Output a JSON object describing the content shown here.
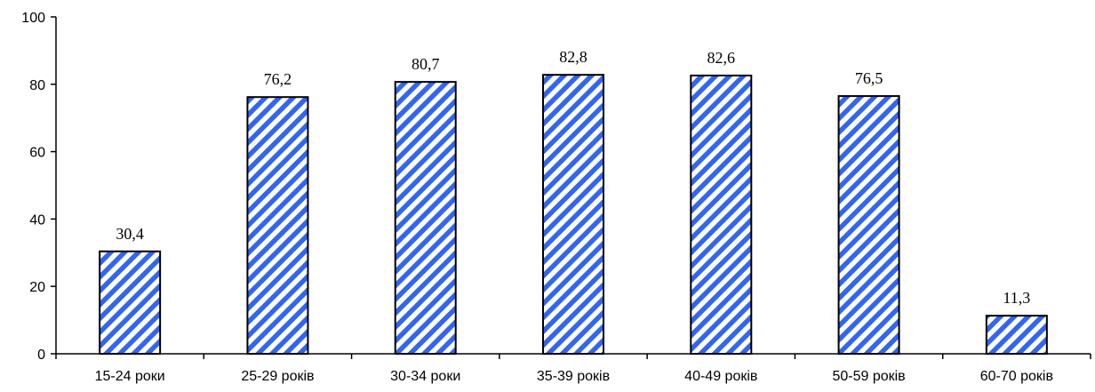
{
  "chart_data": {
    "type": "bar",
    "categories": [
      "15-24 роки",
      "25-29 років",
      "30-34 роки",
      "35-39 років",
      "40-49 років",
      "50-59 років",
      "60-70 років"
    ],
    "values": [
      30.4,
      76.2,
      80.7,
      82.8,
      82.6,
      76.5,
      11.3
    ],
    "data_labels": [
      "30,4",
      "76,2",
      "80,7",
      "82,8",
      "82,6",
      "76,5",
      "11,3"
    ],
    "ylim": [
      0,
      100
    ],
    "yticks": [
      0,
      20,
      40,
      60,
      80,
      100
    ],
    "grid": false,
    "legend": "none",
    "bar_fill": "diagonal blue and white stripes",
    "colors": {
      "stripe": "#3366ee",
      "bar_background": "#ffffff",
      "outline": "#000000"
    }
  }
}
